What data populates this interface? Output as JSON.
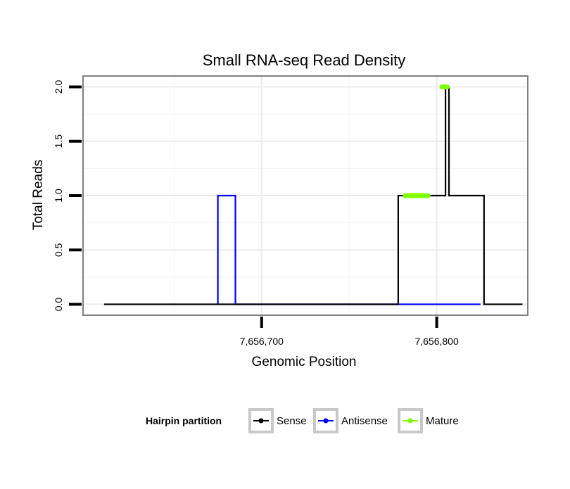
{
  "chart_data": {
    "type": "line",
    "title": "Small RNA-seq Read Density",
    "xlabel": "Genomic Position",
    "ylabel": "Total Reads",
    "xlim": [
      7656598,
      7656852
    ],
    "ylim": [
      -0.1,
      2.1
    ],
    "x_ticks": [
      7656700,
      7656800
    ],
    "x_tick_labels": [
      "7,656,700",
      "7,656,800"
    ],
    "y_ticks": [
      0,
      0.5,
      1,
      1.5,
      2
    ],
    "y_tick_labels": [
      "0.0",
      "0.5",
      "1.0",
      "1.5",
      "2.0"
    ],
    "grid": true,
    "legend": {
      "title": "Hairpin partition",
      "position": "bottom",
      "entries": [
        "Sense",
        "Antisense",
        "Mature"
      ]
    },
    "series": [
      {
        "name": "Sense",
        "color": "#000000",
        "x": [
          7656610,
          7656778,
          7656778,
          7656805,
          7656805,
          7656807,
          7656807,
          7656810,
          7656810,
          7656827,
          7656827,
          7656849
        ],
        "y": [
          0,
          0,
          1,
          1,
          2,
          2,
          1,
          1,
          1,
          1,
          0,
          0
        ]
      },
      {
        "name": "Antisense",
        "color": "#0000ff",
        "x": [
          7656675,
          7656675,
          7656679,
          7656679,
          7656685,
          7656685,
          7656765,
          7656825
        ],
        "y": [
          0,
          1,
          1,
          1,
          1,
          0,
          0,
          0
        ]
      },
      {
        "name": "Mature",
        "color": "#7fff00",
        "segments": [
          {
            "x": [
              7656782,
              7656795
            ],
            "y": [
              1,
              1
            ]
          },
          {
            "x": [
              7656803,
              7656806
            ],
            "y": [
              2,
              2
            ]
          }
        ]
      }
    ]
  }
}
